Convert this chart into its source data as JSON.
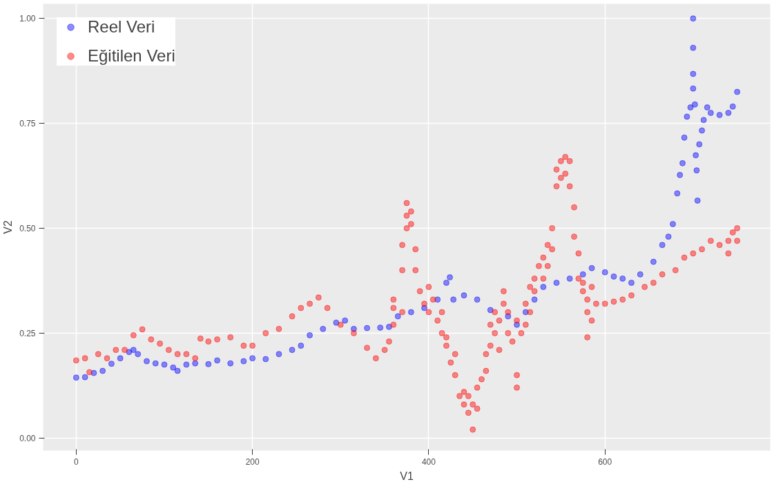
{
  "chart_data": {
    "type": "scatter",
    "xlabel": "V1",
    "ylabel": "V2",
    "xlim": [
      -37.5,
      787.5
    ],
    "ylim": [
      -0.03,
      1.035
    ],
    "xticks": [
      0,
      200,
      400,
      600
    ],
    "yticks": [
      {
        "value": 0,
        "label": "0.00"
      },
      {
        "value": 0.25,
        "label": "0.25"
      },
      {
        "value": 0.5,
        "label": "0.50"
      },
      {
        "value": 0.75,
        "label": "0.75"
      },
      {
        "value": 1,
        "label": "1.00"
      }
    ],
    "grid": true,
    "legend": "top left",
    "marker": "circle",
    "series": [
      {
        "name": "Reel Veri",
        "color": "#0000ff",
        "x": [
          0,
          10,
          20,
          30,
          40,
          50,
          60,
          65,
          70,
          80,
          90,
          100,
          110,
          115,
          125,
          135,
          150,
          160,
          175,
          190,
          200,
          215,
          230,
          245,
          255,
          265,
          280,
          295,
          305,
          315,
          330,
          345,
          355,
          365,
          380,
          395,
          410,
          420,
          424,
          428,
          440,
          455,
          470,
          490,
          500,
          510,
          520,
          530,
          545,
          560,
          575,
          585,
          600,
          610,
          620,
          630,
          640,
          655,
          665,
          672,
          677,
          682,
          685,
          688,
          690,
          693,
          697,
          700,
          700,
          700,
          700,
          702,
          703,
          704,
          705,
          707,
          710,
          712,
          716,
          720,
          730,
          740,
          745,
          750
        ],
        "values": [
          0.144,
          0.145,
          0.155,
          0.16,
          0.177,
          0.19,
          0.205,
          0.21,
          0.2,
          0.183,
          0.178,
          0.175,
          0.168,
          0.16,
          0.175,
          0.178,
          0.176,
          0.185,
          0.178,
          0.183,
          0.19,
          0.188,
          0.2,
          0.21,
          0.22,
          0.245,
          0.26,
          0.275,
          0.28,
          0.26,
          0.262,
          0.263,
          0.265,
          0.29,
          0.3,
          0.31,
          0.33,
          0.37,
          0.383,
          0.33,
          0.34,
          0.33,
          0.305,
          0.29,
          0.27,
          0.3,
          0.33,
          0.36,
          0.37,
          0.38,
          0.39,
          0.405,
          0.395,
          0.385,
          0.38,
          0.37,
          0.39,
          0.42,
          0.46,
          0.48,
          0.51,
          0.583,
          0.627,
          0.655,
          0.716,
          0.766,
          0.788,
          1.0,
          0.93,
          0.868,
          0.833,
          0.795,
          0.674,
          0.638,
          0.566,
          0.7,
          0.733,
          0.758,
          0.788,
          0.775,
          0.77,
          0.775,
          0.79,
          0.825
        ]
      },
      {
        "name": "Eğitilen Veri",
        "color": "#ff0000",
        "x": [
          0,
          10,
          15,
          25,
          35,
          45,
          55,
          65,
          75,
          85,
          95,
          105,
          115,
          125,
          135,
          141,
          150,
          160,
          175,
          190,
          200,
          215,
          230,
          245,
          255,
          265,
          275,
          285,
          300,
          315,
          330,
          340,
          350,
          355,
          360,
          360,
          360,
          370,
          370,
          370,
          375,
          375,
          375,
          380,
          380,
          385,
          385,
          390,
          395,
          400,
          400,
          405,
          410,
          415,
          415,
          420,
          420,
          425,
          430,
          430,
          435,
          440,
          440,
          445,
          445,
          450,
          450,
          455,
          455,
          460,
          465,
          465,
          470,
          470,
          475,
          475,
          480,
          480,
          485,
          485,
          490,
          490,
          495,
          500,
          500,
          500,
          505,
          510,
          510,
          515,
          515,
          520,
          520,
          525,
          530,
          530,
          535,
          535,
          540,
          540,
          545,
          545,
          550,
          550,
          555,
          555,
          560,
          560,
          565,
          565,
          570,
          570,
          575,
          575,
          580,
          580,
          580,
          585,
          585,
          590,
          600,
          610,
          620,
          630,
          645,
          655,
          665,
          680,
          690,
          700,
          710,
          720,
          730,
          740,
          740,
          745,
          750,
          750
        ],
        "values": [
          0.185,
          0.19,
          0.157,
          0.2,
          0.19,
          0.21,
          0.21,
          0.245,
          0.259,
          0.235,
          0.225,
          0.21,
          0.2,
          0.2,
          0.19,
          0.237,
          0.23,
          0.235,
          0.24,
          0.22,
          0.22,
          0.25,
          0.26,
          0.29,
          0.31,
          0.32,
          0.335,
          0.31,
          0.27,
          0.25,
          0.215,
          0.19,
          0.21,
          0.23,
          0.27,
          0.31,
          0.33,
          0.3,
          0.4,
          0.46,
          0.53,
          0.56,
          0.5,
          0.51,
          0.54,
          0.45,
          0.4,
          0.35,
          0.32,
          0.3,
          0.36,
          0.33,
          0.28,
          0.25,
          0.3,
          0.24,
          0.22,
          0.18,
          0.15,
          0.2,
          0.1,
          0.08,
          0.11,
          0.06,
          0.1,
          0.02,
          0.08,
          0.12,
          0.07,
          0.14,
          0.2,
          0.16,
          0.22,
          0.27,
          0.25,
          0.3,
          0.28,
          0.21,
          0.35,
          0.32,
          0.25,
          0.3,
          0.23,
          0.15,
          0.12,
          0.28,
          0.25,
          0.32,
          0.27,
          0.36,
          0.3,
          0.38,
          0.35,
          0.41,
          0.43,
          0.38,
          0.46,
          0.41,
          0.5,
          0.45,
          0.6,
          0.64,
          0.66,
          0.62,
          0.67,
          0.63,
          0.66,
          0.6,
          0.55,
          0.48,
          0.44,
          0.38,
          0.37,
          0.35,
          0.3,
          0.33,
          0.24,
          0.36,
          0.28,
          0.32,
          0.32,
          0.325,
          0.33,
          0.34,
          0.36,
          0.37,
          0.39,
          0.4,
          0.43,
          0.44,
          0.45,
          0.47,
          0.46,
          0.44,
          0.47,
          0.49,
          0.5,
          0.47
        ]
      }
    ]
  }
}
